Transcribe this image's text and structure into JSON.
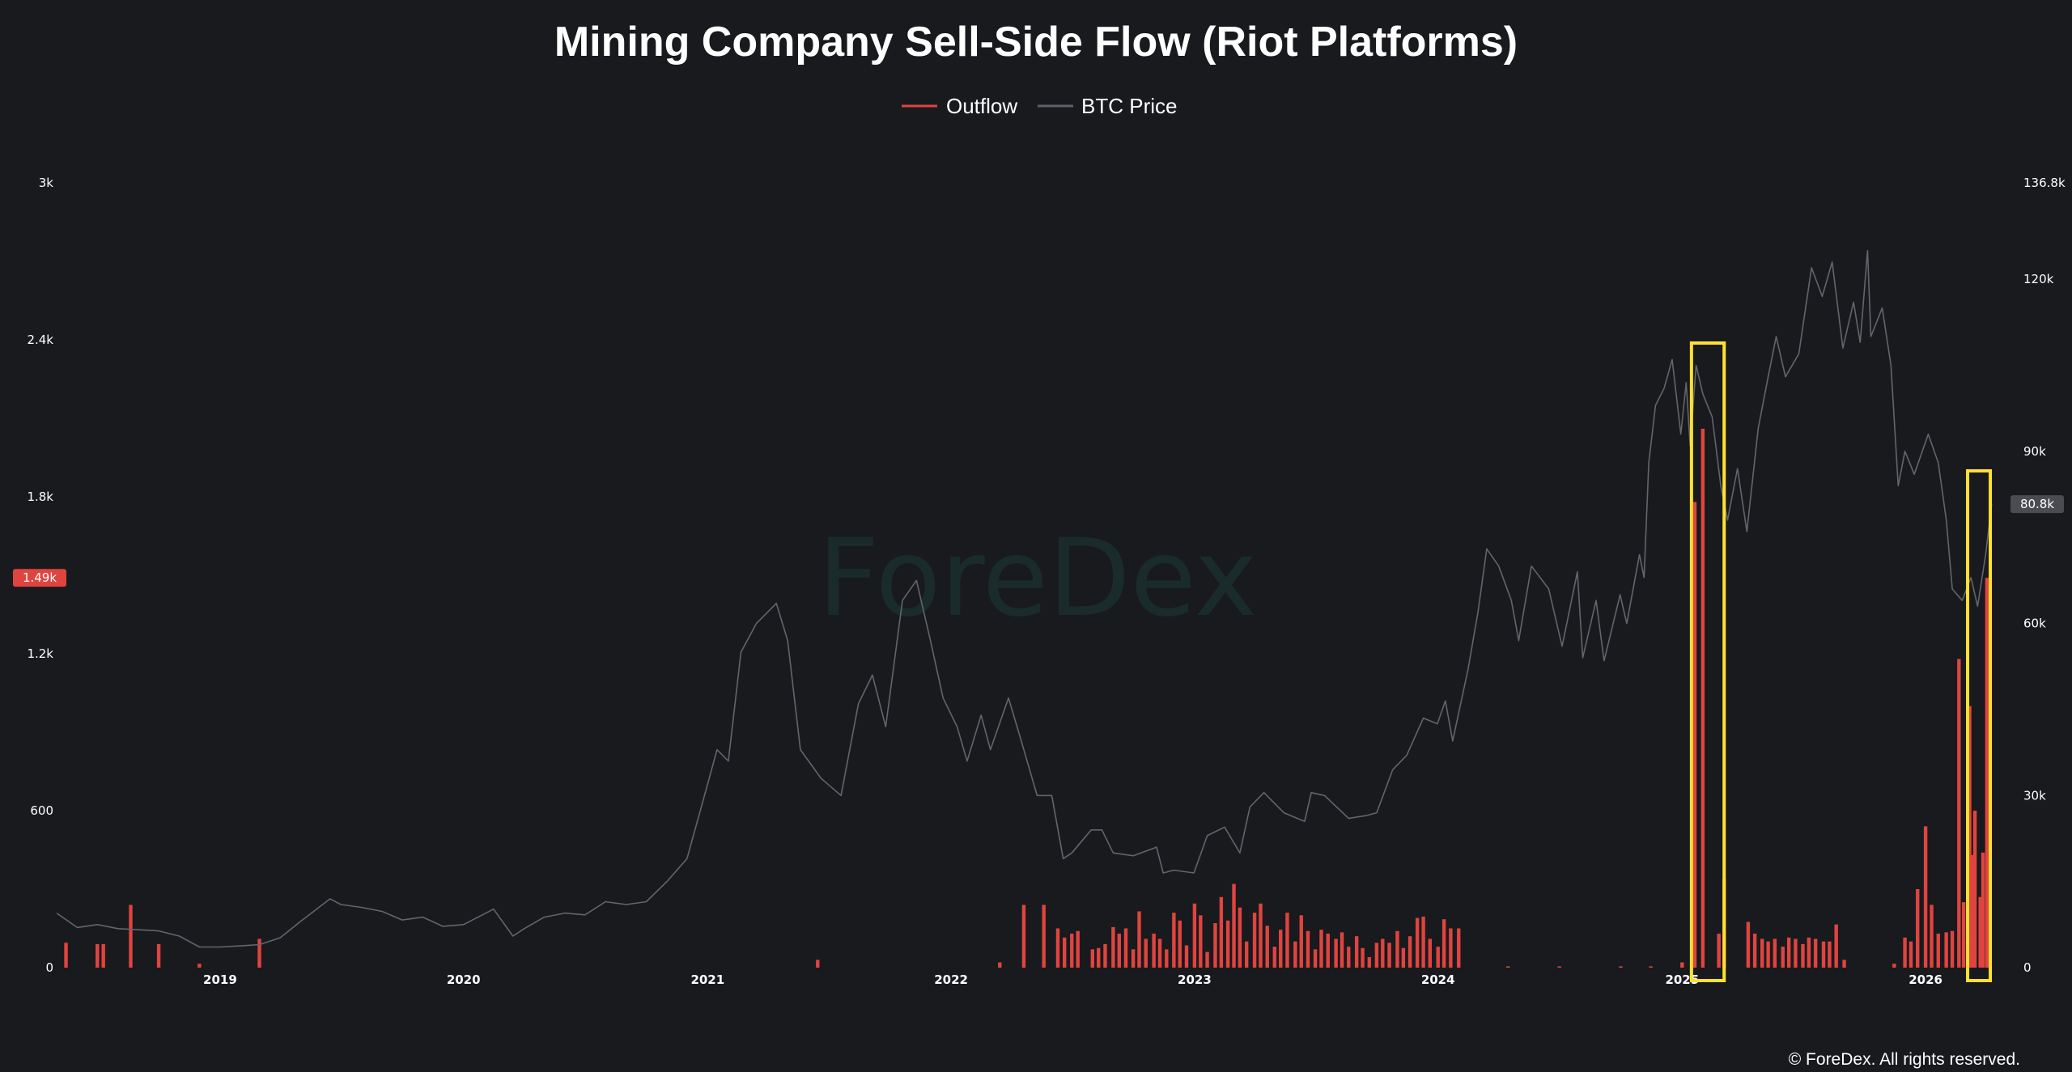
{
  "chart_data": {
    "type": "bar",
    "title": "Mining Company Sell-Side Flow (Riot Platforms)",
    "legend": {
      "placement": "top-center",
      "entries": [
        {
          "name": "Outflow",
          "color": "#e0443f"
        },
        {
          "name": "BTC Price",
          "color": "#5d6066"
        }
      ]
    },
    "x_tick_labels": [
      "2019",
      "2020",
      "2021",
      "2022",
      "2023",
      "2024",
      "2025",
      "2026"
    ],
    "x_range": [
      "2018-05-01",
      "2026-05-01"
    ],
    "left_axis": {
      "name": "Outflow",
      "range": [
        0,
        3000
      ],
      "tick_labels": [
        "0",
        "600",
        "1.2k",
        "1.8k",
        "2.4k",
        "3k"
      ],
      "current_value_label": "1.49k",
      "current_value": 1490,
      "current_value_color": "#e0443f"
    },
    "right_axis": {
      "name": "BTC Price",
      "range": [
        0,
        136800
      ],
      "tick_labels": [
        "0",
        "30k",
        "60k",
        "90k",
        "120k",
        "136.8k"
      ],
      "current_value_label": "80.8k",
      "current_value": 80800,
      "current_value_color": "#4a4c51"
    },
    "grid": false,
    "watermark": "ForeDex",
    "copyright": "© ForeDex. All rights reserved.",
    "highlight_boxes": [
      {
        "start": "2025-01-15",
        "end": "2025-03-05",
        "color": "#ffe033"
      },
      {
        "start": "2026-03-05",
        "end": "2026-04-08",
        "color": "#ffe033"
      }
    ],
    "series": [
      {
        "name": "Outflow",
        "type": "bar",
        "color": "#e0443f",
        "points": [
          [
            "2018-05-15",
            95
          ],
          [
            "2018-07-01",
            90
          ],
          [
            "2018-07-10",
            90
          ],
          [
            "2018-08-20",
            240
          ],
          [
            "2018-10-01",
            90
          ],
          [
            "2018-12-01",
            15
          ],
          [
            "2019-03-01",
            110
          ],
          [
            "2021-06-15",
            30
          ],
          [
            "2022-03-15",
            20
          ],
          [
            "2022-04-20",
            240
          ],
          [
            "2022-05-20",
            240
          ],
          [
            "2022-06-10",
            150
          ],
          [
            "2022-06-20",
            115
          ],
          [
            "2022-07-01",
            130
          ],
          [
            "2022-07-10",
            140
          ],
          [
            "2022-08-01",
            70
          ],
          [
            "2022-08-10",
            75
          ],
          [
            "2022-08-20",
            90
          ],
          [
            "2022-09-01",
            155
          ],
          [
            "2022-09-10",
            130
          ],
          [
            "2022-09-20",
            150
          ],
          [
            "2022-10-01",
            70
          ],
          [
            "2022-10-10",
            215
          ],
          [
            "2022-10-20",
            110
          ],
          [
            "2022-11-01",
            130
          ],
          [
            "2022-11-10",
            110
          ],
          [
            "2022-11-20",
            70
          ],
          [
            "2022-12-01",
            210
          ],
          [
            "2022-12-10",
            180
          ],
          [
            "2022-12-20",
            85
          ],
          [
            "2023-01-01",
            245
          ],
          [
            "2023-01-10",
            200
          ],
          [
            "2023-01-20",
            60
          ],
          [
            "2023-02-01",
            170
          ],
          [
            "2023-02-10",
            270
          ],
          [
            "2023-02-20",
            180
          ],
          [
            "2023-03-01",
            320
          ],
          [
            "2023-03-10",
            230
          ],
          [
            "2023-03-20",
            100
          ],
          [
            "2023-04-01",
            210
          ],
          [
            "2023-04-10",
            245
          ],
          [
            "2023-04-20",
            160
          ],
          [
            "2023-05-01",
            80
          ],
          [
            "2023-05-10",
            145
          ],
          [
            "2023-05-20",
            210
          ],
          [
            "2023-06-01",
            100
          ],
          [
            "2023-06-10",
            200
          ],
          [
            "2023-06-20",
            140
          ],
          [
            "2023-07-01",
            70
          ],
          [
            "2023-07-10",
            145
          ],
          [
            "2023-07-20",
            130
          ],
          [
            "2023-08-01",
            110
          ],
          [
            "2023-08-10",
            135
          ],
          [
            "2023-08-20",
            80
          ],
          [
            "2023-09-01",
            120
          ],
          [
            "2023-09-10",
            75
          ],
          [
            "2023-09-20",
            40
          ],
          [
            "2023-10-01",
            95
          ],
          [
            "2023-10-10",
            110
          ],
          [
            "2023-10-20",
            95
          ],
          [
            "2023-11-01",
            140
          ],
          [
            "2023-11-10",
            75
          ],
          [
            "2023-11-20",
            120
          ],
          [
            "2023-12-01",
            190
          ],
          [
            "2023-12-10",
            195
          ],
          [
            "2023-12-20",
            110
          ],
          [
            "2024-01-01",
            80
          ],
          [
            "2024-01-10",
            185
          ],
          [
            "2024-01-20",
            150
          ],
          [
            "2024-02-01",
            150
          ],
          [
            "2024-04-15",
            5
          ],
          [
            "2024-07-01",
            5
          ],
          [
            "2024-10-01",
            5
          ],
          [
            "2024-11-15",
            5
          ],
          [
            "2025-01-01",
            20
          ],
          [
            "2025-01-20",
            1780
          ],
          [
            "2025-02-01",
            2060
          ],
          [
            "2025-02-25",
            130
          ],
          [
            "2025-03-05",
            340
          ],
          [
            "2025-04-10",
            175
          ],
          [
            "2025-04-20",
            130
          ],
          [
            "2025-05-01",
            110
          ],
          [
            "2025-05-10",
            100
          ],
          [
            "2025-05-20",
            110
          ],
          [
            "2025-06-01",
            80
          ],
          [
            "2025-06-10",
            115
          ],
          [
            "2025-06-20",
            110
          ],
          [
            "2025-07-01",
            90
          ],
          [
            "2025-07-10",
            115
          ],
          [
            "2025-07-20",
            110
          ],
          [
            "2025-08-01",
            100
          ],
          [
            "2025-08-10",
            100
          ],
          [
            "2025-08-20",
            165
          ],
          [
            "2025-09-01",
            30
          ],
          [
            "2025-11-15",
            15
          ],
          [
            "2025-12-01",
            115
          ],
          [
            "2025-12-10",
            100
          ],
          [
            "2025-12-20",
            300
          ],
          [
            "2026-01-01",
            540
          ],
          [
            "2026-01-10",
            240
          ],
          [
            "2026-01-20",
            130
          ],
          [
            "2026-02-01",
            135
          ],
          [
            "2026-02-10",
            140
          ],
          [
            "2026-02-20",
            1180
          ],
          [
            "2026-02-27",
            250
          ],
          [
            "2026-03-08",
            1000
          ],
          [
            "2026-03-12",
            430
          ],
          [
            "2026-03-16",
            600
          ],
          [
            "2026-03-24",
            270
          ],
          [
            "2026-03-28",
            440
          ],
          [
            "2026-04-03",
            1490
          ]
        ]
      },
      {
        "name": "BTC Price",
        "type": "line",
        "color": "#5d6066",
        "points": [
          [
            "2018-05-01",
            9500
          ],
          [
            "2018-06-01",
            7000
          ],
          [
            "2018-07-01",
            7500
          ],
          [
            "2018-08-01",
            6800
          ],
          [
            "2018-09-01",
            6600
          ],
          [
            "2018-10-01",
            6400
          ],
          [
            "2018-11-01",
            5500
          ],
          [
            "2018-12-01",
            3600
          ],
          [
            "2019-01-01",
            3600
          ],
          [
            "2019-02-01",
            3800
          ],
          [
            "2019-03-01",
            4000
          ],
          [
            "2019-04-01",
            5200
          ],
          [
            "2019-05-01",
            8000
          ],
          [
            "2019-06-15",
            12000
          ],
          [
            "2019-07-01",
            11000
          ],
          [
            "2019-08-01",
            10500
          ],
          [
            "2019-09-01",
            9800
          ],
          [
            "2019-10-01",
            8300
          ],
          [
            "2019-11-01",
            8800
          ],
          [
            "2019-12-01",
            7200
          ],
          [
            "2020-01-01",
            7500
          ],
          [
            "2020-02-15",
            10200
          ],
          [
            "2020-03-15",
            5500
          ],
          [
            "2020-04-01",
            6800
          ],
          [
            "2020-05-01",
            8800
          ],
          [
            "2020-06-01",
            9500
          ],
          [
            "2020-07-01",
            9200
          ],
          [
            "2020-08-01",
            11500
          ],
          [
            "2020-09-01",
            11000
          ],
          [
            "2020-10-01",
            11500
          ],
          [
            "2020-11-01",
            15000
          ],
          [
            "2020-12-01",
            19000
          ],
          [
            "2021-01-01",
            32000
          ],
          [
            "2021-01-15",
            38000
          ],
          [
            "2021-02-01",
            36000
          ],
          [
            "2021-02-20",
            55000
          ],
          [
            "2021-03-15",
            60000
          ],
          [
            "2021-04-14",
            63500
          ],
          [
            "2021-05-01",
            57000
          ],
          [
            "2021-05-20",
            38000
          ],
          [
            "2021-06-20",
            33000
          ],
          [
            "2021-07-20",
            30000
          ],
          [
            "2021-08-15",
            46000
          ],
          [
            "2021-09-05",
            51000
          ],
          [
            "2021-09-25",
            42000
          ],
          [
            "2021-10-20",
            64000
          ],
          [
            "2021-11-10",
            67500
          ],
          [
            "2021-12-01",
            57000
          ],
          [
            "2021-12-20",
            47000
          ],
          [
            "2022-01-10",
            42000
          ],
          [
            "2022-01-25",
            36000
          ],
          [
            "2022-02-15",
            44000
          ],
          [
            "2022-03-01",
            38000
          ],
          [
            "2022-03-28",
            47000
          ],
          [
            "2022-04-15",
            40000
          ],
          [
            "2022-05-10",
            30000
          ],
          [
            "2022-06-01",
            30000
          ],
          [
            "2022-06-18",
            19000
          ],
          [
            "2022-07-01",
            20000
          ],
          [
            "2022-07-30",
            24000
          ],
          [
            "2022-08-15",
            24000
          ],
          [
            "2022-09-01",
            20000
          ],
          [
            "2022-10-01",
            19500
          ],
          [
            "2022-11-05",
            21000
          ],
          [
            "2022-11-15",
            16500
          ],
          [
            "2022-12-01",
            17000
          ],
          [
            "2022-12-31",
            16500
          ],
          [
            "2023-01-20",
            23000
          ],
          [
            "2023-02-15",
            24500
          ],
          [
            "2023-03-10",
            20000
          ],
          [
            "2023-03-25",
            28000
          ],
          [
            "2023-04-15",
            30500
          ],
          [
            "2023-05-15",
            27000
          ],
          [
            "2023-06-15",
            25500
          ],
          [
            "2023-06-25",
            30500
          ],
          [
            "2023-07-15",
            30000
          ],
          [
            "2023-08-20",
            26000
          ],
          [
            "2023-09-15",
            26500
          ],
          [
            "2023-10-01",
            27000
          ],
          [
            "2023-10-25",
            34500
          ],
          [
            "2023-11-15",
            37000
          ],
          [
            "2023-12-10",
            43500
          ],
          [
            "2023-12-31",
            42500
          ],
          [
            "2024-01-12",
            46500
          ],
          [
            "2024-01-23",
            39500
          ],
          [
            "2024-02-15",
            52000
          ],
          [
            "2024-03-01",
            62000
          ],
          [
            "2024-03-14",
            73000
          ],
          [
            "2024-04-01",
            70000
          ],
          [
            "2024-04-20",
            64000
          ],
          [
            "2024-05-01",
            57000
          ],
          [
            "2024-05-20",
            70000
          ],
          [
            "2024-06-15",
            66000
          ],
          [
            "2024-07-05",
            56000
          ],
          [
            "2024-07-28",
            69000
          ],
          [
            "2024-08-05",
            54000
          ],
          [
            "2024-08-25",
            64000
          ],
          [
            "2024-09-06",
            53500
          ],
          [
            "2024-09-30",
            65000
          ],
          [
            "2024-10-10",
            60000
          ],
          [
            "2024-10-29",
            72000
          ],
          [
            "2024-11-05",
            68000
          ],
          [
            "2024-11-12",
            88000
          ],
          [
            "2024-11-22",
            98000
          ],
          [
            "2024-12-05",
            101000
          ],
          [
            "2024-12-17",
            106000
          ],
          [
            "2024-12-30",
            93000
          ],
          [
            "2025-01-07",
            102000
          ],
          [
            "2025-01-13",
            91000
          ],
          [
            "2025-01-22",
            105000
          ],
          [
            "2025-02-01",
            100000
          ],
          [
            "2025-02-15",
            96000
          ],
          [
            "2025-02-28",
            84000
          ],
          [
            "2025-03-10",
            78000
          ],
          [
            "2025-03-25",
            87000
          ],
          [
            "2025-04-08",
            76000
          ],
          [
            "2025-04-25",
            94000
          ],
          [
            "2025-05-10",
            103000
          ],
          [
            "2025-05-22",
            110000
          ],
          [
            "2025-06-05",
            103000
          ],
          [
            "2025-06-25",
            107000
          ],
          [
            "2025-07-14",
            122000
          ],
          [
            "2025-07-30",
            117000
          ],
          [
            "2025-08-14",
            123000
          ],
          [
            "2025-08-30",
            108000
          ],
          [
            "2025-09-15",
            116000
          ],
          [
            "2025-09-25",
            109000
          ],
          [
            "2025-10-06",
            125000
          ],
          [
            "2025-10-11",
            110000
          ],
          [
            "2025-10-28",
            115000
          ],
          [
            "2025-11-10",
            105000
          ],
          [
            "2025-11-21",
            84000
          ],
          [
            "2025-12-01",
            90000
          ],
          [
            "2025-12-15",
            86000
          ],
          [
            "2026-01-05",
            93000
          ],
          [
            "2026-01-20",
            88000
          ],
          [
            "2026-02-01",
            78000
          ],
          [
            "2026-02-10",
            66000
          ],
          [
            "2026-02-25",
            64000
          ],
          [
            "2026-03-10",
            68000
          ],
          [
            "2026-03-20",
            63000
          ],
          [
            "2026-04-01",
            72000
          ],
          [
            "2026-04-10",
            80800
          ]
        ]
      }
    ]
  }
}
